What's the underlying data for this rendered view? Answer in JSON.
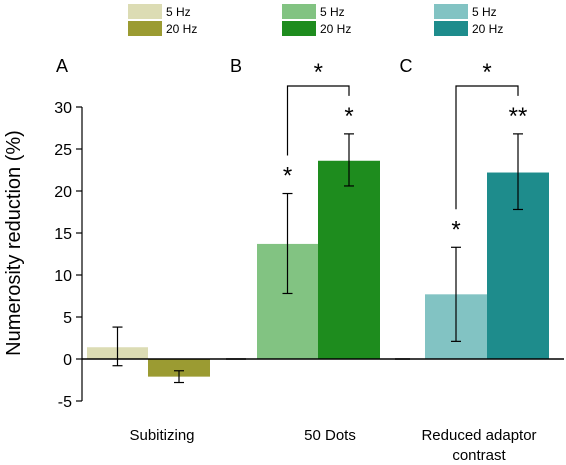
{
  "chart_data": {
    "type": "bar",
    "ylabel": "Numerosity reduction (%)",
    "ylim": [
      -5,
      30
    ],
    "yticks": [
      -5,
      0,
      5,
      10,
      15,
      20,
      25,
      30
    ],
    "panels": [
      {
        "letter": "A",
        "category": "Subitizing",
        "legend": [
          "5 Hz",
          "20 Hz"
        ],
        "colors": [
          "#dcdcb4",
          "#9b9b32"
        ],
        "values": [
          1.4,
          -2.1
        ],
        "err_low": [
          -0.8,
          -2.8
        ],
        "err_high": [
          3.8,
          -1.4
        ],
        "stars": [
          "",
          ""
        ],
        "bracket_label": ""
      },
      {
        "letter": "B",
        "category": "50 Dots",
        "legend": [
          "5 Hz",
          "20 Hz"
        ],
        "colors": [
          "#82c382",
          "#1e8c1e"
        ],
        "values": [
          13.7,
          23.6
        ],
        "err_low": [
          7.8,
          20.6
        ],
        "err_high": [
          19.7,
          26.8
        ],
        "stars": [
          "*",
          "*"
        ],
        "bracket_label": "*"
      },
      {
        "letter": "C",
        "category_lines": [
          "Reduced adaptor",
          "contrast"
        ],
        "legend": [
          "5 Hz",
          "20 Hz"
        ],
        "colors": [
          "#82c3c3",
          "#1e8c8c"
        ],
        "values": [
          7.7,
          22.2
        ],
        "err_low": [
          2.1,
          17.8
        ],
        "err_high": [
          13.3,
          26.8
        ],
        "stars": [
          "*",
          "**"
        ],
        "bracket_label": "*"
      }
    ]
  }
}
